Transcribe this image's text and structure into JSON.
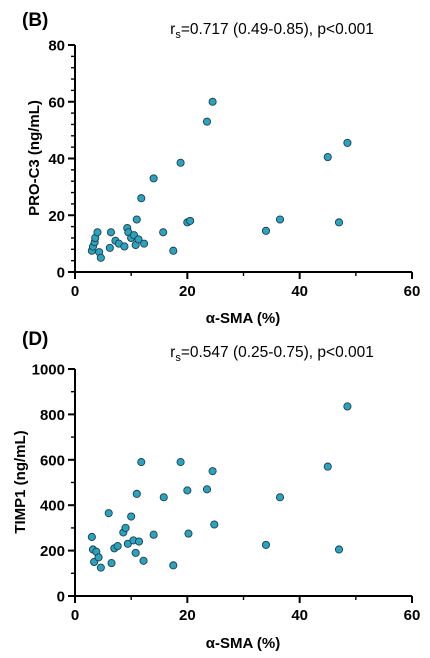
{
  "chart_data": [
    {
      "type": "scatter",
      "panel_label": "(B)",
      "stat_r_prefix": "r",
      "stat_r_sub": "s",
      "stat_rest": "=0.717 (0.49-0.85), p<0.001",
      "xlabel": "α-SMA (%)",
      "ylabel": "PRO-C3 (ng/mL)",
      "xlim": [
        0,
        60
      ],
      "ylim": [
        0,
        80
      ],
      "xticks": [
        "0",
        "20",
        "40",
        "60"
      ],
      "yticks": [
        "0",
        "20",
        "40",
        "60",
        "80"
      ],
      "x": [
        3.0,
        3.2,
        3.5,
        3.6,
        4.0,
        4.3,
        4.6,
        6.2,
        6.4,
        7.2,
        7.8,
        8.8,
        9.3,
        9.5,
        10.0,
        10.5,
        10.8,
        11.0,
        11.3,
        11.8,
        12.3,
        14.0,
        15.7,
        17.5,
        18.8,
        20.0,
        20.5,
        23.5,
        24.5,
        34.0,
        36.5,
        45.0,
        47.0,
        48.5
      ],
      "y": [
        7.5,
        9.0,
        10.5,
        12.0,
        14.0,
        7.0,
        5.0,
        8.5,
        14.0,
        11.0,
        10.0,
        9.0,
        15.5,
        14.0,
        12.0,
        13.0,
        9.5,
        18.5,
        11.5,
        26.0,
        10.0,
        33.0,
        14.0,
        7.5,
        38.5,
        17.5,
        18.0,
        53.0,
        60.0,
        14.5,
        18.5,
        40.5,
        17.5,
        45.5
      ]
    },
    {
      "type": "scatter",
      "panel_label": "(D)",
      "stat_r_prefix": "r",
      "stat_r_sub": "s",
      "stat_rest": "=0.547 (0.25-0.75), p<0.001",
      "xlabel": "α-SMA (%)",
      "ylabel": "TIMP1 (ng/mL)",
      "xlim": [
        0,
        60
      ],
      "ylim": [
        0,
        1000
      ],
      "xticks": [
        "0",
        "20",
        "40",
        "60"
      ],
      "yticks": [
        "0",
        "200",
        "400",
        "600",
        "800",
        "1000"
      ],
      "x": [
        3.0,
        3.2,
        3.4,
        3.8,
        4.2,
        4.6,
        6.0,
        6.5,
        7.0,
        7.6,
        8.6,
        9.0,
        9.4,
        10.0,
        10.4,
        10.8,
        11.0,
        11.4,
        11.8,
        12.2,
        14.0,
        15.8,
        17.5,
        18.8,
        20.0,
        20.2,
        23.5,
        24.5,
        24.8,
        34.0,
        36.5,
        45.0,
        47.0,
        48.5
      ],
      "y": [
        260,
        205,
        150,
        195,
        170,
        125,
        365,
        145,
        210,
        220,
        280,
        300,
        230,
        350,
        245,
        190,
        450,
        240,
        590,
        155,
        270,
        435,
        135,
        590,
        465,
        275,
        470,
        550,
        315,
        225,
        435,
        570,
        205,
        835
      ]
    }
  ]
}
